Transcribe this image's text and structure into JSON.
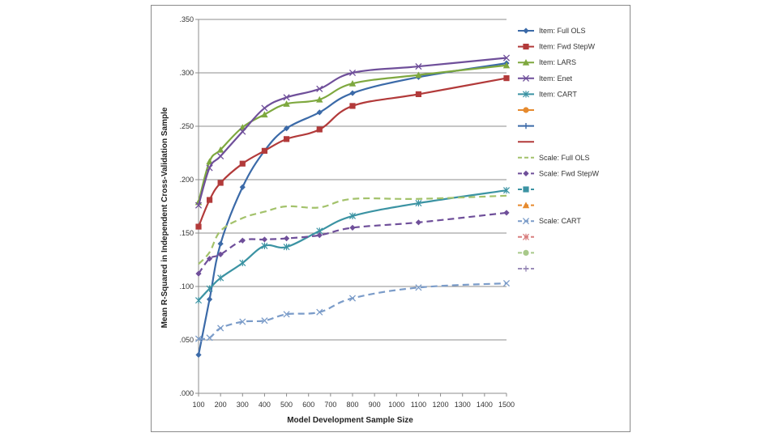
{
  "chart_data": {
    "type": "line",
    "title": "",
    "xlabel": "Model Development Sample Size",
    "ylabel": "Mean R-Squared in Independent Cross-Validation Sample",
    "xlim": [
      100,
      1500
    ],
    "ylim": [
      0,
      0.35
    ],
    "x_ticks": [
      100,
      200,
      300,
      400,
      500,
      600,
      700,
      800,
      900,
      1000,
      1100,
      1200,
      1300,
      1400,
      1500
    ],
    "x_tick_labels": [
      "100",
      "200",
      "300",
      "400",
      "500",
      "600",
      "700",
      "800",
      "900",
      "1000",
      "1100",
      "1200",
      "1300",
      "1400",
      "1500"
    ],
    "y_ticks": [
      0,
      0.05,
      0.1,
      0.15,
      0.2,
      0.25,
      0.3,
      0.35
    ],
    "y_tick_labels": [
      ".000",
      ".050",
      ".100",
      ".150",
      ".200",
      ".250",
      ".300",
      ".350"
    ],
    "grid": "horizontal",
    "legend_position": "right",
    "series": [
      {
        "name": "Item: Full OLS",
        "color": "#3b6aa8",
        "marker": "diamond",
        "dash": "solid",
        "x": [
          100,
          150,
          200,
          300,
          400,
          500,
          650,
          800,
          1100,
          1500
        ],
        "values": [
          0.036,
          0.088,
          0.14,
          0.193,
          0.227,
          0.248,
          0.263,
          0.281,
          0.296,
          0.309
        ]
      },
      {
        "name": "Item: Fwd StepW",
        "color": "#b23a3a",
        "marker": "square",
        "dash": "solid",
        "x": [
          100,
          150,
          200,
          300,
          400,
          500,
          650,
          800,
          1100,
          1500
        ],
        "values": [
          0.156,
          0.181,
          0.197,
          0.215,
          0.227,
          0.238,
          0.247,
          0.269,
          0.28,
          0.295
        ]
      },
      {
        "name": "Item: LARS",
        "color": "#7ea83f",
        "marker": "triangle",
        "dash": "solid",
        "x": [
          100,
          150,
          200,
          300,
          400,
          500,
          650,
          800,
          1100,
          1500
        ],
        "values": [
          0.179,
          0.217,
          0.228,
          0.249,
          0.261,
          0.271,
          0.275,
          0.29,
          0.298,
          0.307
        ]
      },
      {
        "name": "Item: Enet",
        "color": "#6f4f9a",
        "marker": "x",
        "dash": "solid",
        "x": [
          100,
          150,
          200,
          300,
          400,
          500,
          650,
          800,
          1100,
          1500
        ],
        "values": [
          0.176,
          0.211,
          0.222,
          0.245,
          0.267,
          0.277,
          0.285,
          0.3,
          0.306,
          0.314
        ]
      },
      {
        "name": "Item: CART",
        "color": "#3b93a3",
        "marker": "star",
        "dash": "solid",
        "x": [
          100,
          150,
          200,
          300,
          400,
          500,
          650,
          800,
          1100,
          1500
        ],
        "values": [
          0.087,
          0.098,
          0.108,
          0.122,
          0.138,
          0.137,
          0.152,
          0.166,
          0.178,
          0.19
        ]
      },
      {
        "name": "",
        "color": "#e68a2e",
        "marker": "circle",
        "dash": "solid",
        "x": [],
        "values": []
      },
      {
        "name": "",
        "color": "#3b6aa8",
        "marker": "plus",
        "dash": "solid",
        "x": [],
        "values": []
      },
      {
        "name": "",
        "color": "#b23a3a",
        "marker": "none",
        "dash": "solid",
        "x": [],
        "values": []
      },
      {
        "name": "Scale: Full OLS",
        "color": "#a3c26b",
        "marker": "none",
        "dash": "dashed",
        "x": [
          100,
          150,
          200,
          300,
          400,
          500,
          650,
          800,
          1100,
          1500
        ],
        "values": [
          0.121,
          0.132,
          0.152,
          0.164,
          0.17,
          0.175,
          0.174,
          0.182,
          0.182,
          0.185
        ]
      },
      {
        "name": "Scale: Fwd StepW",
        "color": "#6f4f9a",
        "marker": "diamond",
        "dash": "dashed",
        "x": [
          100,
          150,
          200,
          300,
          400,
          500,
          650,
          800,
          1100,
          1500
        ],
        "values": [
          0.112,
          0.126,
          0.13,
          0.143,
          0.144,
          0.145,
          0.148,
          0.155,
          0.16,
          0.169
        ]
      },
      {
        "name": "",
        "color": "#3b93a3",
        "marker": "square",
        "dash": "dashed",
        "x": [],
        "values": []
      },
      {
        "name": "",
        "color": "#e68a2e",
        "marker": "triangle",
        "dash": "dashed",
        "x": [],
        "values": []
      },
      {
        "name": "Scale: CART",
        "color": "#7b9cc9",
        "marker": "x",
        "dash": "dashed",
        "x": [
          100,
          150,
          200,
          300,
          400,
          500,
          650,
          800,
          1100,
          1500
        ],
        "values": [
          0.051,
          0.052,
          0.061,
          0.067,
          0.068,
          0.074,
          0.076,
          0.089,
          0.099,
          0.103
        ]
      },
      {
        "name": "",
        "color": "#d97f7f",
        "marker": "star",
        "dash": "dashed",
        "x": [],
        "values": []
      },
      {
        "name": "",
        "color": "#a8c98a",
        "marker": "circle",
        "dash": "dashed",
        "x": [],
        "values": []
      },
      {
        "name": "",
        "color": "#9a8bb8",
        "marker": "plus",
        "dash": "dashed",
        "x": [],
        "values": []
      }
    ]
  }
}
